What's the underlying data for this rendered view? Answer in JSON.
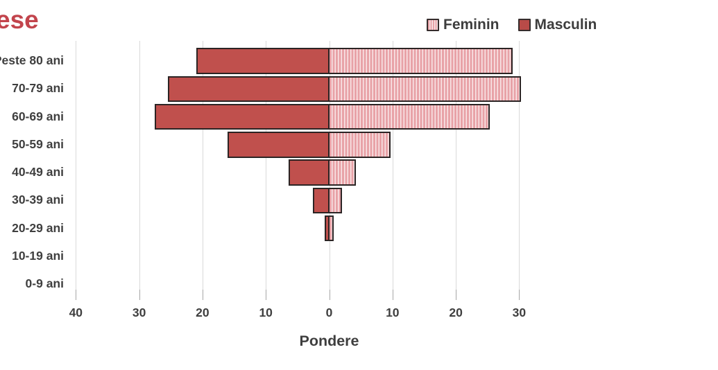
{
  "title_fragment": "ese",
  "title_color": "#c2444c",
  "legend": {
    "items": [
      {
        "label": "Feminin",
        "swatch": "striped-pink"
      },
      {
        "label": "Masculin",
        "swatch": "solid-red"
      }
    ]
  },
  "chart_data": {
    "type": "bar",
    "subtype": "population-pyramid",
    "orientation": "horizontal",
    "title_visible_fragment": "ese",
    "xlabel": "Pondere",
    "categories": [
      "Peste 80 ani",
      "70-79 ani",
      "60-69 ani",
      "50-59 ani",
      "40-49 ani",
      "30-39 ani",
      "20-29 ani",
      "10-19 ani",
      "0-9 ani"
    ],
    "series": [
      {
        "name": "Masculin",
        "side": "left",
        "values": [
          21,
          25.5,
          27.5,
          16,
          6.4,
          2.6,
          0.7,
          0,
          0
        ]
      },
      {
        "name": "Feminin",
        "side": "right",
        "values": [
          29,
          30.3,
          25.4,
          9.7,
          4.2,
          2.0,
          0.7,
          0,
          0
        ]
      }
    ],
    "x_tick_values": [
      -40,
      -30,
      -20,
      -10,
      0,
      10,
      20,
      30
    ],
    "x_tick_labels": [
      "40",
      "30",
      "20",
      "10",
      "0",
      "10",
      "20",
      "30"
    ],
    "xlim": [
      -40,
      35
    ],
    "grid": true,
    "legend_position": "top-right",
    "colors": {
      "masculin_fill": "#c0504d",
      "feminin_stripe_dark": "#e8a2a7",
      "feminin_stripe_light": "#f9e7e8",
      "bar_border": "#2b2424",
      "gridline": "#d9d9d9",
      "text": "#3f3f3f",
      "title": "#c2444c"
    }
  }
}
